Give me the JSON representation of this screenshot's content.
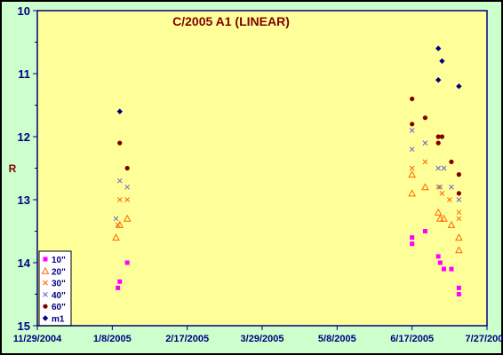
{
  "chart_data": {
    "type": "scatter",
    "title": "C/2005 A1 (LINEAR)",
    "ylabel": "R",
    "xlabel": "",
    "x_axis": {
      "type": "date",
      "range": [
        "2004-11-29",
        "2005-07-27"
      ],
      "tick_labels": [
        "11/29/2004",
        "1/8/2005",
        "2/17/2005",
        "3/29/2005",
        "5/8/2005",
        "6/17/2005",
        "7/27/2005"
      ],
      "tick_dates": [
        "2004-11-29",
        "2005-01-08",
        "2005-02-17",
        "2005-03-29",
        "2005-05-08",
        "2005-06-17",
        "2005-07-27"
      ]
    },
    "y_axis": {
      "range": [
        10,
        15
      ],
      "reversed": true,
      "tick_labels": [
        "10",
        "11",
        "12",
        "13",
        "14",
        "15"
      ]
    },
    "grid": false,
    "legend_position": "bottom-left",
    "colors": {
      "plot_background": "#ffff99",
      "chart_background": "#ccffcc",
      "axis": "#000080",
      "title": "#800000"
    },
    "series": [
      {
        "name": "10\"",
        "marker": "square",
        "color": "#ff00ff",
        "points": [
          {
            "x": "2005-01-11",
            "y": 14.4
          },
          {
            "x": "2005-01-12",
            "y": 14.3
          },
          {
            "x": "2005-01-16",
            "y": 14.0
          },
          {
            "x": "2005-06-17",
            "y": 13.6
          },
          {
            "x": "2005-06-17",
            "y": 13.7
          },
          {
            "x": "2005-06-24",
            "y": 13.5
          },
          {
            "x": "2005-07-01",
            "y": 13.9
          },
          {
            "x": "2005-07-02",
            "y": 14.0
          },
          {
            "x": "2005-07-04",
            "y": 14.1
          },
          {
            "x": "2005-07-08",
            "y": 14.1
          },
          {
            "x": "2005-07-12",
            "y": 14.4
          },
          {
            "x": "2005-07-12",
            "y": 14.5
          }
        ]
      },
      {
        "name": "20\"",
        "marker": "triangle",
        "color": "#ff6600",
        "points": [
          {
            "x": "2005-01-10",
            "y": 13.6
          },
          {
            "x": "2005-01-12",
            "y": 13.4
          },
          {
            "x": "2005-01-16",
            "y": 13.3
          },
          {
            "x": "2005-06-17",
            "y": 12.6
          },
          {
            "x": "2005-06-17",
            "y": 12.9
          },
          {
            "x": "2005-06-24",
            "y": 12.8
          },
          {
            "x": "2005-07-01",
            "y": 13.2
          },
          {
            "x": "2005-07-02",
            "y": 13.3
          },
          {
            "x": "2005-07-04",
            "y": 13.3
          },
          {
            "x": "2005-07-08",
            "y": 13.4
          },
          {
            "x": "2005-07-12",
            "y": 13.6
          },
          {
            "x": "2005-07-12",
            "y": 13.8
          }
        ]
      },
      {
        "name": "30\"",
        "marker": "x",
        "color": "#ff6600",
        "points": [
          {
            "x": "2005-01-11",
            "y": 13.4
          },
          {
            "x": "2005-01-12",
            "y": 13.0
          },
          {
            "x": "2005-01-16",
            "y": 13.0
          },
          {
            "x": "2005-06-17",
            "y": 12.5
          },
          {
            "x": "2005-06-24",
            "y": 12.4
          },
          {
            "x": "2005-07-01",
            "y": 12.8
          },
          {
            "x": "2005-07-03",
            "y": 12.9
          },
          {
            "x": "2005-07-07",
            "y": 13.0
          },
          {
            "x": "2005-07-12",
            "y": 13.2
          },
          {
            "x": "2005-07-12",
            "y": 13.3
          }
        ]
      },
      {
        "name": "40\"",
        "marker": "x",
        "color": "#6666cc",
        "points": [
          {
            "x": "2005-01-10",
            "y": 13.3
          },
          {
            "x": "2005-01-12",
            "y": 12.7
          },
          {
            "x": "2005-01-16",
            "y": 12.8
          },
          {
            "x": "2005-06-17",
            "y": 11.9
          },
          {
            "x": "2005-06-17",
            "y": 12.2
          },
          {
            "x": "2005-06-24",
            "y": 12.1
          },
          {
            "x": "2005-07-01",
            "y": 12.5
          },
          {
            "x": "2005-07-02",
            "y": 12.8
          },
          {
            "x": "2005-07-04",
            "y": 12.5
          },
          {
            "x": "2005-07-08",
            "y": 12.8
          },
          {
            "x": "2005-07-12",
            "y": 13.0
          }
        ]
      },
      {
        "name": "60\"",
        "marker": "circle",
        "color": "#800000",
        "points": [
          {
            "x": "2005-01-12",
            "y": 12.1
          },
          {
            "x": "2005-01-16",
            "y": 12.5
          },
          {
            "x": "2005-06-17",
            "y": 11.4
          },
          {
            "x": "2005-06-17",
            "y": 11.8
          },
          {
            "x": "2005-06-24",
            "y": 11.7
          },
          {
            "x": "2005-07-01",
            "y": 12.0
          },
          {
            "x": "2005-07-01",
            "y": 12.1
          },
          {
            "x": "2005-07-03",
            "y": 12.0
          },
          {
            "x": "2005-07-08",
            "y": 12.4
          },
          {
            "x": "2005-07-12",
            "y": 12.6
          },
          {
            "x": "2005-07-12",
            "y": 12.9
          }
        ]
      },
      {
        "name": "m1",
        "marker": "diamond",
        "color": "#000080",
        "points": [
          {
            "x": "2005-01-12",
            "y": 11.6
          },
          {
            "x": "2005-07-01",
            "y": 11.1
          },
          {
            "x": "2005-07-01",
            "y": 10.6
          },
          {
            "x": "2005-07-03",
            "y": 10.8
          },
          {
            "x": "2005-07-12",
            "y": 11.2
          }
        ]
      }
    ]
  }
}
